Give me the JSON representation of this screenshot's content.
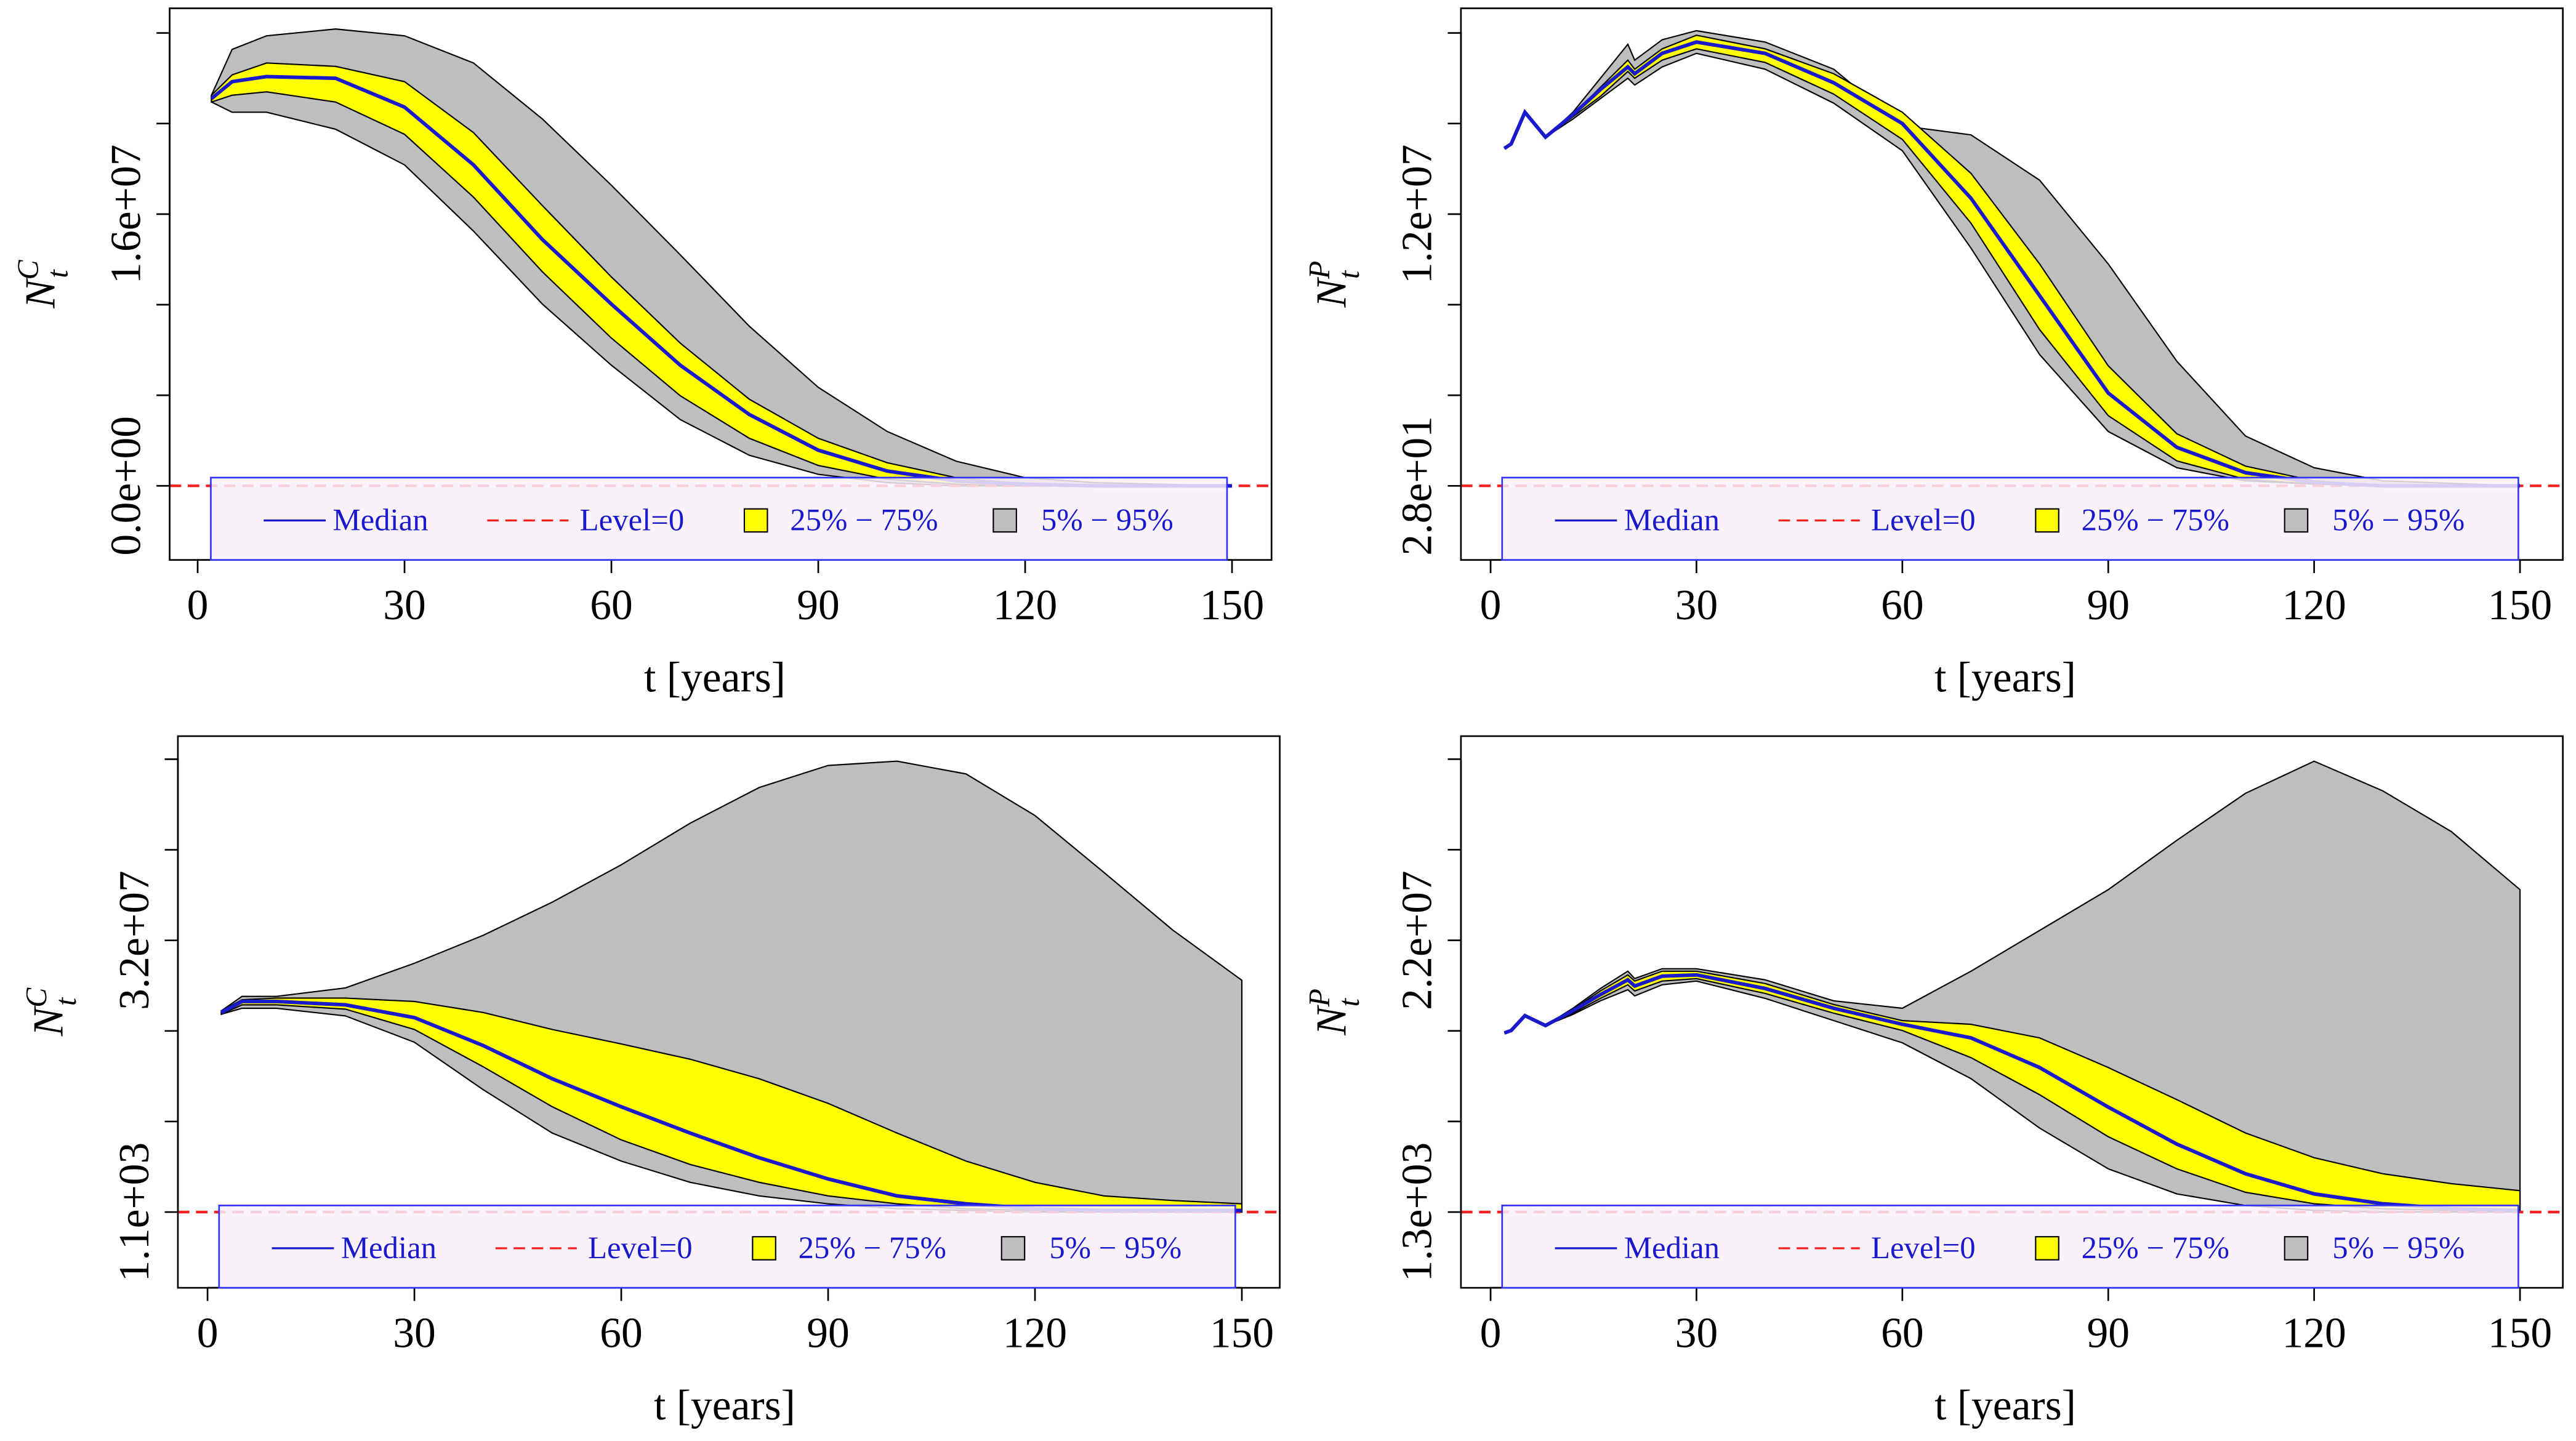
{
  "chart_data": [
    {
      "type": "band",
      "xlabel": "t [years]",
      "ylabel": "N",
      "ylabel_sub": "t",
      "ylabel_sup": "C",
      "xlim": [
        -4.06,
        155.73
      ],
      "xticks": [
        0,
        30,
        60,
        90,
        120,
        150
      ],
      "ylim": [
        -4364000,
        28120000
      ],
      "yticks": [
        {
          "value": 0,
          "label": "0.0e+00"
        },
        {
          "value": 16000000,
          "label": "1.6e+07"
        }
      ],
      "yminor": [
        5333333,
        10666667,
        21333333,
        26666667
      ],
      "legend": "bottom",
      "x": [
        2,
        5,
        10,
        20,
        30,
        40,
        50,
        60,
        70,
        80,
        90,
        100,
        110,
        120,
        130,
        150
      ],
      "series": [
        {
          "name": "Median",
          "color": "#1a1acc",
          "values": [
            22800000,
            23800000,
            24100000,
            24000000,
            22300000,
            18900000,
            14500000,
            10700000,
            7100000,
            4200000,
            2100000,
            870000,
            290000,
            100000,
            0,
            0
          ]
        },
        {
          "name": "Level=0",
          "color": "#ff2020",
          "value": 0
        },
        {
          "name": "25% − 75%",
          "color": "#ffff00",
          "lower": [
            22600000,
            23000000,
            23200000,
            22600000,
            20700000,
            17000000,
            12600000,
            8700000,
            5300000,
            2800000,
            1200000,
            390000,
            100000,
            0,
            0,
            0
          ],
          "upper": [
            23000000,
            24200000,
            24900000,
            24700000,
            23800000,
            20800000,
            16500000,
            12300000,
            8400000,
            5100000,
            2800000,
            1360000,
            480000,
            100000,
            0,
            0
          ]
        },
        {
          "name": "5% − 95%",
          "color": "#bebebe",
          "lower": [
            22600000,
            22000000,
            22000000,
            21000000,
            18900000,
            15000000,
            10700000,
            7100000,
            3900000,
            1800000,
            680000,
            190000,
            0,
            0,
            0,
            0
          ],
          "upper": [
            23000000,
            25700000,
            26500000,
            26900000,
            26500000,
            24900000,
            21600000,
            17700000,
            13600000,
            9400000,
            5800000,
            3200000,
            1450000,
            480000,
            190000,
            0
          ]
        }
      ]
    },
    {
      "type": "band",
      "xlabel": "t [years]",
      "ylabel": "N",
      "ylabel_sub": "t",
      "ylabel_sup": "P",
      "xlim": [
        -4.32,
        156.24
      ],
      "xticks": [
        0,
        30,
        60,
        90,
        120,
        150
      ],
      "ylim": [
        -3272700,
        21090000
      ],
      "yticks": [
        {
          "value": 28,
          "label": "2.8e+01"
        },
        {
          "value": 12000000,
          "label": "1.2e+07"
        }
      ],
      "yminor": [
        4000019,
        8000009,
        15999991,
        19999981
      ],
      "legend": "bottom",
      "x": [
        2,
        3,
        5,
        8,
        12,
        16,
        20,
        21,
        25,
        30,
        40,
        50,
        60,
        70,
        80,
        90,
        100,
        110,
        120,
        130,
        150
      ],
      "series": [
        {
          "name": "Median",
          "color": "#1a1acc",
          "values": [
            14900000,
            15100000,
            16500000,
            15400000,
            16400000,
            17500000,
            18500000,
            18200000,
            19100000,
            19600000,
            19100000,
            17800000,
            16000000,
            12700000,
            8400000,
            4100000,
            1700000,
            580000,
            150000,
            28,
            28
          ]
        },
        {
          "name": "Level=0",
          "color": "#ff2020",
          "value": 0
        },
        {
          "name": "25% − 75%",
          "color": "#ffff00",
          "lower": [
            14900000,
            15100000,
            16500000,
            15400000,
            16300000,
            17200000,
            18300000,
            18000000,
            18800000,
            19300000,
            18700000,
            17300000,
            15300000,
            11600000,
            6900000,
            3100000,
            1100000,
            290000,
            73000,
            28,
            28
          ],
          "upper": [
            14900000,
            15100000,
            16500000,
            15400000,
            16400000,
            17600000,
            18800000,
            18400000,
            19300000,
            19900000,
            19300000,
            18200000,
            16500000,
            13800000,
            9800000,
            5300000,
            2300000,
            870000,
            220000,
            28,
            28
          ]
        },
        {
          "name": "5% − 95%",
          "color": "#bebebe",
          "lower": [
            14900000,
            15100000,
            16500000,
            15400000,
            16200000,
            17100000,
            18000000,
            17700000,
            18500000,
            19100000,
            18400000,
            16900000,
            14800000,
            10500000,
            5800000,
            2400000,
            800000,
            220000,
            73000,
            28,
            28
          ],
          "upper": [
            14900000,
            15100000,
            16500000,
            15400000,
            16500000,
            18000000,
            19500000,
            18800000,
            19700000,
            20100000,
            19600000,
            18400000,
            15900000,
            15500000,
            13500000,
            9800000,
            5500000,
            2200000,
            800000,
            220000,
            28
          ]
        }
      ]
    },
    {
      "type": "band",
      "xlabel": "t [years]",
      "ylabel": "N",
      "ylabel_sub": "t",
      "ylabel_sup": "C",
      "xlim": [
        -4.3,
        155.5
      ],
      "xticks": [
        0,
        30,
        60,
        90,
        120,
        150
      ],
      "ylim": [
        -8920000,
        56050000
      ],
      "yticks": [
        {
          "value": 1100,
          "label": "1.1e+03"
        },
        {
          "value": 32000000,
          "label": "3.2e+07"
        }
      ],
      "yminor": [
        10667400,
        21333700,
        42666300,
        53332600
      ],
      "legend": "bottom",
      "x": [
        2,
        5,
        10,
        20,
        30,
        40,
        50,
        60,
        70,
        80,
        90,
        100,
        110,
        120,
        130,
        140,
        150
      ],
      "series": [
        {
          "name": "Median",
          "color": "#1a1acc",
          "values": [
            23500000,
            24800000,
            24800000,
            24400000,
            22900000,
            19600000,
            15700000,
            12400000,
            9300000,
            6400000,
            3900000,
            1900000,
            970000,
            390000,
            190000,
            190000,
            190000
          ]
        },
        {
          "name": "Level=0",
          "color": "#ff2020",
          "value": 0
        },
        {
          "name": "25% − 75%",
          "color": "#ffff00",
          "lower": [
            23300000,
            24400000,
            24400000,
            23900000,
            21500000,
            17100000,
            12400000,
            8500000,
            5600000,
            3500000,
            1900000,
            970000,
            390000,
            190000,
            1100,
            1100,
            1100
          ],
          "upper": [
            23700000,
            25000000,
            25200000,
            25200000,
            24800000,
            23500000,
            21500000,
            19800000,
            18000000,
            15700000,
            12800000,
            9300000,
            6000000,
            3500000,
            1900000,
            1360000,
            970000
          ]
        },
        {
          "name": "5% − 95%",
          "color": "#bebebe",
          "lower": [
            23300000,
            24000000,
            24000000,
            23100000,
            20000000,
            14400000,
            9300000,
            6000000,
            3500000,
            1900000,
            970000,
            390000,
            190000,
            1100,
            1100,
            1100,
            1100
          ],
          "upper": [
            23700000,
            25400000,
            25400000,
            26400000,
            29300000,
            32600000,
            36500000,
            40900000,
            45800000,
            50000000,
            52600000,
            53100000,
            51600000,
            46700000,
            40000000,
            33200000,
            27300000
          ]
        }
      ]
    },
    {
      "type": "band",
      "xlabel": "t [years]",
      "ylabel": "N",
      "ylabel_sub": "t",
      "ylabel_sup": "P",
      "xlim": [
        -4.32,
        156.24
      ],
      "xticks": [
        0,
        30,
        60,
        90,
        120,
        150
      ],
      "ylim": [
        -6132000,
        38530000
      ],
      "yticks": [
        {
          "value": 1300,
          "label": "1.3e+03"
        },
        {
          "value": 22000000,
          "label": "2.2e+07"
        }
      ],
      "yminor": [
        7334200,
        14667100,
        29332900,
        36665800
      ],
      "legend": "bottom",
      "x": [
        2,
        3,
        5,
        8,
        12,
        16,
        20,
        21,
        25,
        30,
        40,
        50,
        60,
        70,
        80,
        90,
        100,
        110,
        120,
        130,
        140,
        150
      ],
      "series": [
        {
          "name": "Median",
          "color": "#1a1acc",
          "values": [
            14500000,
            14700000,
            15900000,
            15100000,
            16300000,
            17600000,
            18800000,
            18300000,
            19100000,
            19200000,
            18100000,
            16500000,
            15200000,
            14100000,
            11700000,
            8500000,
            5500000,
            3100000,
            1470000,
            670000,
            270000,
            130000
          ]
        },
        {
          "name": "Level=0",
          "color": "#ff2020",
          "value": 0
        },
        {
          "name": "25% − 75%",
          "color": "#ffff00",
          "lower": [
            14500000,
            14700000,
            15900000,
            15100000,
            16100000,
            17300000,
            18400000,
            17900000,
            18700000,
            18900000,
            17700000,
            16100000,
            14700000,
            12500000,
            9500000,
            6100000,
            3500000,
            1600000,
            670000,
            270000,
            130000,
            1300
          ],
          "upper": [
            14500000,
            14700000,
            15900000,
            15100000,
            16400000,
            17900000,
            19200000,
            18700000,
            19500000,
            19500000,
            18500000,
            16800000,
            15500000,
            15200000,
            14100000,
            11700000,
            9100000,
            6400000,
            4400000,
            3100000,
            2300000,
            1730000
          ]
        },
        {
          "name": "5% − 95%",
          "color": "#bebebe",
          "lower": [
            14500000,
            14700000,
            15900000,
            15100000,
            16000000,
            17100000,
            18000000,
            17500000,
            18400000,
            18700000,
            17300000,
            15500000,
            13700000,
            10800000,
            6800000,
            3500000,
            1470000,
            530000,
            130000,
            1300,
            1300,
            1300
          ],
          "upper": [
            14500000,
            14700000,
            15900000,
            15100000,
            16500000,
            18100000,
            19500000,
            18900000,
            19700000,
            19700000,
            18800000,
            17100000,
            16500000,
            19500000,
            22800000,
            26100000,
            30100000,
            33900000,
            36500000,
            34100000,
            30800000,
            26100000
          ]
        }
      ]
    }
  ]
}
